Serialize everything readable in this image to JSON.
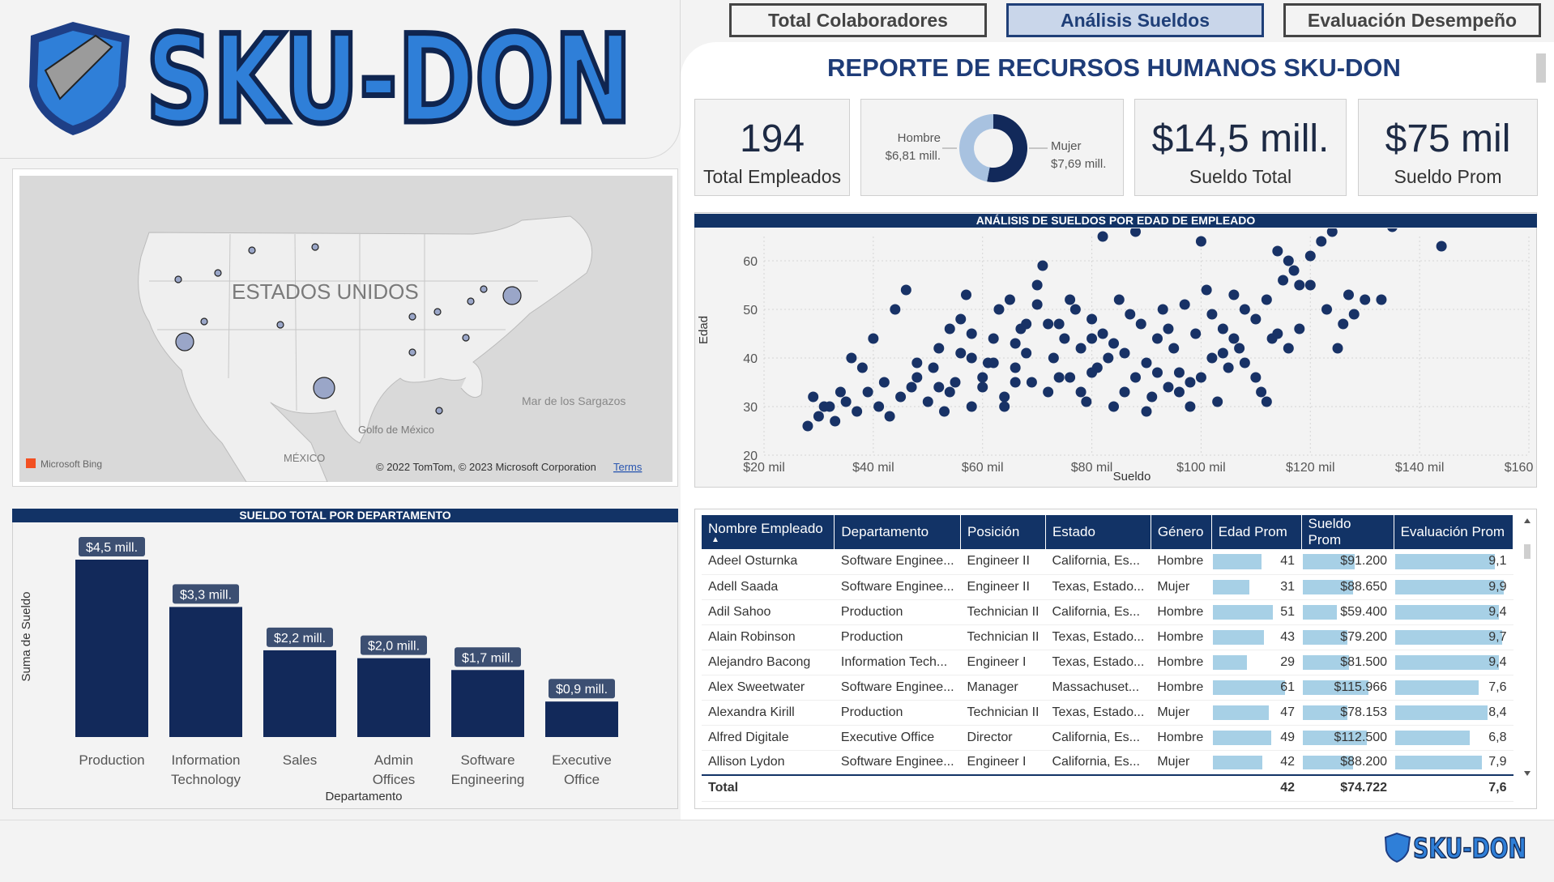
{
  "brand": {
    "name": "SKU-DON"
  },
  "nav": {
    "tabs": [
      {
        "label": "Total Colaboradores",
        "active": false
      },
      {
        "label": "Análisis Sueldos",
        "active": true
      },
      {
        "label": "Evaluación Desempeño",
        "active": false
      }
    ]
  },
  "report_title": "REPORTE DE RECURSOS HUMANOS SKU-DON",
  "kpis": {
    "employees": {
      "value": "194",
      "label": "Total Empleados"
    },
    "total_salary": {
      "value": "$14,5 mill.",
      "label": "Sueldo Total"
    },
    "avg_salary": {
      "value": "$75 mil",
      "label": "Sueldo Prom"
    }
  },
  "gender_donut": {
    "male_label": "Hombre",
    "male_value": "$6,81 mill.",
    "male_share": 0.47,
    "female_label": "Mujer",
    "female_value": "$7,69 mill.",
    "female_share": 0.53,
    "colors": {
      "male": "#a8c2e0",
      "female": "#12295a"
    }
  },
  "map": {
    "country_label": "ESTADOS UNIDOS",
    "labels": [
      "Golfo de México",
      "MÉXICO",
      "Mar de los Sargazos"
    ],
    "credits": "© 2022 TomTom, © 2023 Microsoft Corporation",
    "terms": "Terms",
    "bing": "Microsoft Bing"
  },
  "scatter": {
    "title": "ANÁLISIS DE SUELDOS POR EDAD DE EMPLEADO",
    "chart_data": {
      "type": "scatter",
      "xlabel": "Sueldo",
      "ylabel": "Edad",
      "xlim": [
        20000,
        160000
      ],
      "ylim": [
        20,
        65
      ],
      "xticks": [
        20000,
        40000,
        60000,
        80000,
        100000,
        120000,
        140000,
        160000
      ],
      "xtick_labels": [
        "$20 mil",
        "$40 mil",
        "$60 mil",
        "$80 mil",
        "$100 mil",
        "$120 mil",
        "$140 mil",
        "$160 mil"
      ],
      "yticks": [
        20,
        30,
        40,
        50,
        60
      ],
      "points": [
        [
          28000,
          26
        ],
        [
          30000,
          28
        ],
        [
          29000,
          32
        ],
        [
          31000,
          30
        ],
        [
          33000,
          27
        ],
        [
          35000,
          31
        ],
        [
          37000,
          29
        ],
        [
          39000,
          33
        ],
        [
          41000,
          30
        ],
        [
          42000,
          35
        ],
        [
          43000,
          28
        ],
        [
          45000,
          32
        ],
        [
          44000,
          50
        ],
        [
          46000,
          54
        ],
        [
          47000,
          34
        ],
        [
          48000,
          36
        ],
        [
          50000,
          31
        ],
        [
          51000,
          38
        ],
        [
          52000,
          42
        ],
        [
          53000,
          29
        ],
        [
          54000,
          33
        ],
        [
          55000,
          35
        ],
        [
          56000,
          48
        ],
        [
          57000,
          53
        ],
        [
          58000,
          30
        ],
        [
          60000,
          36
        ],
        [
          61000,
          39
        ],
        [
          62000,
          44
        ],
        [
          63000,
          50
        ],
        [
          64000,
          32
        ],
        [
          65000,
          52
        ],
        [
          66000,
          38
        ],
        [
          67000,
          46
        ],
        [
          68000,
          41
        ],
        [
          69000,
          35
        ],
        [
          70000,
          55
        ],
        [
          71000,
          59
        ],
        [
          72000,
          33
        ],
        [
          73000,
          40
        ],
        [
          74000,
          47
        ],
        [
          75000,
          44
        ],
        [
          76000,
          36
        ],
        [
          77000,
          50
        ],
        [
          78000,
          42
        ],
        [
          79000,
          31
        ],
        [
          80000,
          48
        ],
        [
          81000,
          38
        ],
        [
          82000,
          45
        ],
        [
          83000,
          40
        ],
        [
          84000,
          30
        ],
        [
          85000,
          52
        ],
        [
          86000,
          33
        ],
        [
          87000,
          49
        ],
        [
          88000,
          36
        ],
        [
          89000,
          47
        ],
        [
          90000,
          39
        ],
        [
          91000,
          32
        ],
        [
          92000,
          44
        ],
        [
          93000,
          50
        ],
        [
          94000,
          34
        ],
        [
          95000,
          42
        ],
        [
          96000,
          37
        ],
        [
          97000,
          51
        ],
        [
          98000,
          30
        ],
        [
          99000,
          45
        ],
        [
          100000,
          36
        ],
        [
          101000,
          54
        ],
        [
          102000,
          40
        ],
        [
          103000,
          31
        ],
        [
          104000,
          46
        ],
        [
          105000,
          38
        ],
        [
          106000,
          53
        ],
        [
          107000,
          42
        ],
        [
          108000,
          50
        ],
        [
          110000,
          48
        ],
        [
          111000,
          33
        ],
        [
          112000,
          52
        ],
        [
          113000,
          44
        ],
        [
          114000,
          62
        ],
        [
          115000,
          56
        ],
        [
          116000,
          60
        ],
        [
          117000,
          58
        ],
        [
          118000,
          46
        ],
        [
          120000,
          61
        ],
        [
          122000,
          64
        ],
        [
          124000,
          66
        ],
        [
          125000,
          42
        ],
        [
          127000,
          53
        ],
        [
          128000,
          49
        ],
        [
          130000,
          52
        ],
        [
          135000,
          67
        ],
        [
          144000,
          63
        ],
        [
          82000,
          65
        ],
        [
          88000,
          66
        ],
        [
          100000,
          64
        ],
        [
          58000,
          45
        ],
        [
          62000,
          39
        ],
        [
          66000,
          35
        ],
        [
          72000,
          47
        ],
        [
          76000,
          52
        ],
        [
          80000,
          37
        ],
        [
          84000,
          43
        ],
        [
          94000,
          46
        ],
        [
          96000,
          33
        ],
        [
          104000,
          41
        ],
        [
          108000,
          39
        ],
        [
          112000,
          31
        ],
        [
          116000,
          42
        ],
        [
          118000,
          55
        ],
        [
          123000,
          50
        ],
        [
          40000,
          44
        ],
        [
          36000,
          40
        ],
        [
          34000,
          33
        ],
        [
          32000,
          30
        ],
        [
          38000,
          38
        ],
        [
          48000,
          39
        ],
        [
          52000,
          34
        ],
        [
          54000,
          46
        ],
        [
          56000,
          41
        ],
        [
          58000,
          40
        ],
        [
          60000,
          34
        ],
        [
          64000,
          30
        ],
        [
          66000,
          43
        ],
        [
          68000,
          47
        ],
        [
          70000,
          51
        ],
        [
          74000,
          36
        ],
        [
          78000,
          33
        ],
        [
          80000,
          44
        ],
        [
          86000,
          41
        ],
        [
          90000,
          29
        ],
        [
          92000,
          37
        ],
        [
          98000,
          35
        ],
        [
          102000,
          49
        ],
        [
          106000,
          44
        ],
        [
          110000,
          36
        ],
        [
          114000,
          45
        ],
        [
          120000,
          55
        ],
        [
          126000,
          47
        ],
        [
          133000,
          52
        ]
      ]
    }
  },
  "dept_chart": {
    "title": "SUELDO TOTAL POR DEPARTAMENTO",
    "chart_data": {
      "type": "bar",
      "categories": [
        "Production",
        "Information Technology",
        "Sales",
        "Admin Offices",
        "Software Engineering",
        "Executive Office"
      ],
      "values": [
        4.5,
        3.3,
        2.2,
        2.0,
        1.7,
        0.9
      ],
      "value_labels": [
        "$4,5 mill.",
        "$3,3 mill.",
        "$2,2 mill.",
        "$2,0 mill.",
        "$1,7 mill.",
        "$0,9 mill."
      ],
      "xlabel": "Departamento",
      "ylabel": "Suma de Sueldo",
      "color": "#12295a"
    }
  },
  "table": {
    "headers": [
      "Nombre Empleado",
      "Departamento",
      "Posición",
      "Estado",
      "Género",
      "Edad Prom",
      "Sueldo Prom",
      "Evaluación Prom"
    ],
    "rows": [
      {
        "name": "Adeel Osturnka",
        "dept": "Software Enginee...",
        "pos": "Engineer II",
        "state": "California, Es...",
        "gender": "Hombre",
        "age": 41,
        "age_label": "41",
        "salary": 91200,
        "salary_label": "$91.200",
        "eval": 9.1,
        "eval_label": "9,1"
      },
      {
        "name": "Adell Saada",
        "dept": "Software Enginee...",
        "pos": "Engineer II",
        "state": "Texas, Estado...",
        "gender": "Mujer",
        "age": 31,
        "age_label": "31",
        "salary": 88650,
        "salary_label": "$88.650",
        "eval": 9.9,
        "eval_label": "9,9"
      },
      {
        "name": "Adil Sahoo",
        "dept": "Production",
        "pos": "Technician II",
        "state": "California, Es...",
        "gender": "Hombre",
        "age": 51,
        "age_label": "51",
        "salary": 59400,
        "salary_label": "$59.400",
        "eval": 9.4,
        "eval_label": "9,4"
      },
      {
        "name": "Alain Robinson",
        "dept": "Production",
        "pos": "Technician II",
        "state": "Texas, Estado...",
        "gender": "Hombre",
        "age": 43,
        "age_label": "43",
        "salary": 79200,
        "salary_label": "$79.200",
        "eval": 9.7,
        "eval_label": "9,7"
      },
      {
        "name": "Alejandro Bacong",
        "dept": "Information Tech...",
        "pos": "Engineer I",
        "state": "Texas, Estado...",
        "gender": "Hombre",
        "age": 29,
        "age_label": "29",
        "salary": 81500,
        "salary_label": "$81.500",
        "eval": 9.4,
        "eval_label": "9,4"
      },
      {
        "name": "Alex Sweetwater",
        "dept": "Software Enginee...",
        "pos": "Manager",
        "state": "Massachuset...",
        "gender": "Hombre",
        "age": 61,
        "age_label": "61",
        "salary": 115966,
        "salary_label": "$115.966",
        "eval": 7.6,
        "eval_label": "7,6"
      },
      {
        "name": "Alexandra Kirill",
        "dept": "Production",
        "pos": "Technician II",
        "state": "Texas, Estado...",
        "gender": "Mujer",
        "age": 47,
        "age_label": "47",
        "salary": 78153,
        "salary_label": "$78.153",
        "eval": 8.4,
        "eval_label": "8,4"
      },
      {
        "name": "Alfred Digitale",
        "dept": "Executive Office",
        "pos": "Director",
        "state": "California, Es...",
        "gender": "Hombre",
        "age": 49,
        "age_label": "49",
        "salary": 112500,
        "salary_label": "$112.500",
        "eval": 6.8,
        "eval_label": "6,8"
      },
      {
        "name": "Allison Lydon",
        "dept": "Software Enginee...",
        "pos": "Engineer I",
        "state": "California, Es...",
        "gender": "Mujer",
        "age": 42,
        "age_label": "42",
        "salary": 88200,
        "salary_label": "$88.200",
        "eval": 7.9,
        "eval_label": "7,9"
      }
    ],
    "total": {
      "label": "Total",
      "age": "42",
      "salary": "$74.722",
      "eval": "7,6"
    }
  },
  "colors": {
    "navy": "#123366",
    "accent_blue": "#2f7fd8",
    "bar_fill": "#a7d0e6"
  }
}
